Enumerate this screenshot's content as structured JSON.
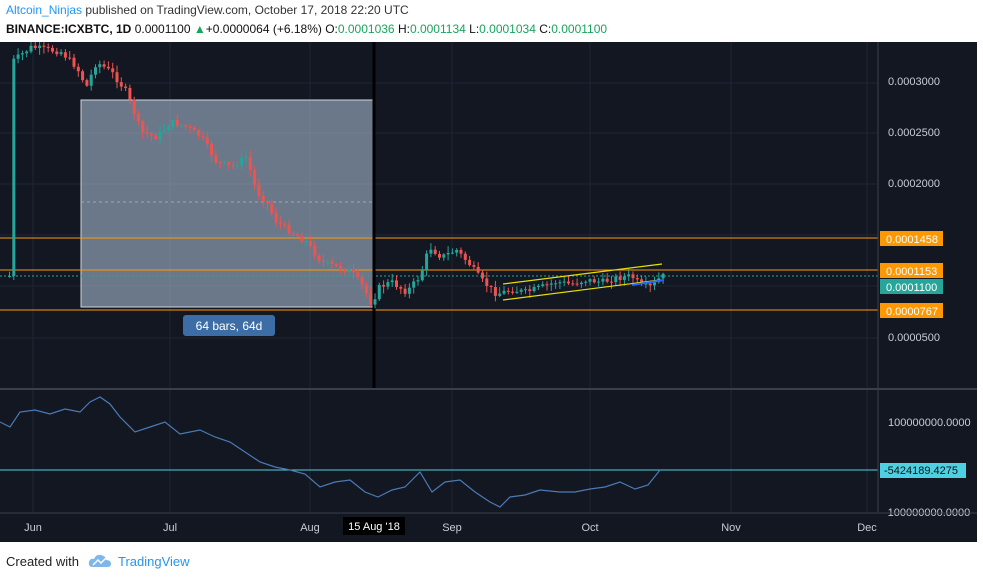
{
  "header": {
    "username": "Altcoin_Ninjas",
    "published_text": " published on TradingView.com, October 17, 2018 22:20 UTC",
    "symbol": "BINANCE:ICXBTC, 1D",
    "last": "0.0001100",
    "change": "+0.0000064 (+6.18%)",
    "o_label": "O:",
    "o_value": "0.0001036",
    "h_label": "H:",
    "h_value": "0.0001134",
    "l_label": "L:",
    "l_value": "0.0001034",
    "c_label": "C:",
    "c_value": "0.0001100"
  },
  "price_axis": {
    "ticks": [
      "0.0003000",
      "0.0002500",
      "0.0002000",
      "0.0000500"
    ],
    "badges": [
      {
        "value": "0.0001458",
        "color": "#ff9800"
      },
      {
        "value": "0.0001153",
        "color": "#ff9800"
      },
      {
        "value": "0.0001100",
        "color": "#26a69a"
      },
      {
        "value": "0.0000767",
        "color": "#ff9800"
      }
    ]
  },
  "indicator_axis": {
    "ticks": [
      "100000000.0000",
      "-100000000.0000"
    ],
    "badge": "-5424189.4275"
  },
  "time_axis": {
    "labels": [
      "Jun",
      "Jul",
      "Aug",
      "Sep",
      "Oct",
      "Nov",
      "Dec"
    ],
    "crosshair_label": "15 Aug '18"
  },
  "measure_label": "64 bars, 64d",
  "footer": {
    "created_with": "Created with",
    "brand": "TradingView"
  },
  "colors": {
    "background": "#131722",
    "up": "#26a69a",
    "down": "#ef5350",
    "level_line": "#ff9800",
    "channel": "#e8e000",
    "indicator_line": "#4a7ab5",
    "indicator_level": "#4dd0e1",
    "measure_box": "#b2c8e0"
  }
}
